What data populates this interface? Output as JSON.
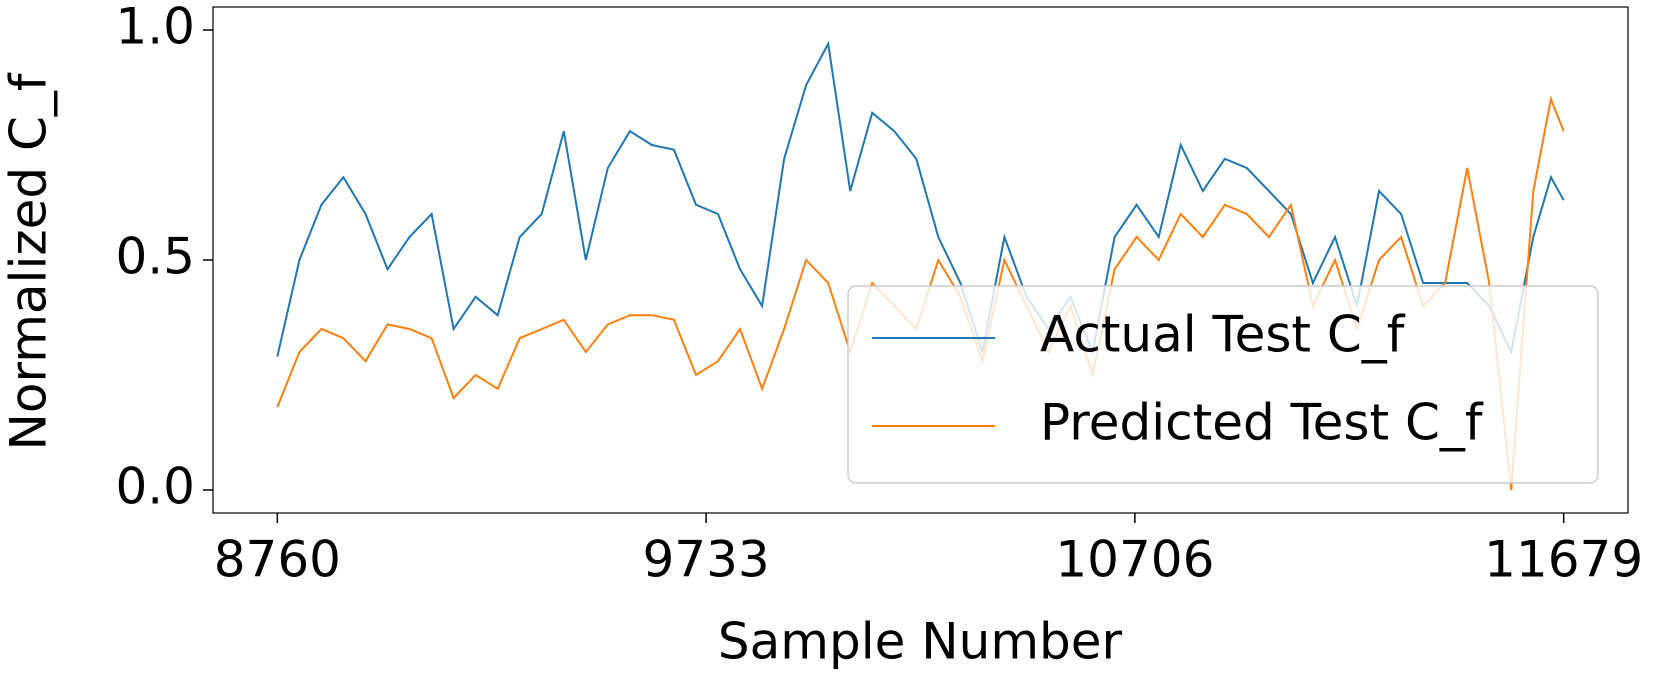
{
  "chart_data": {
    "type": "line",
    "xlabel": "Sample Number",
    "ylabel": "Normalized C_f",
    "x": [
      8760,
      8810,
      8860,
      8910,
      8960,
      9010,
      9060,
      9110,
      9160,
      9210,
      9260,
      9310,
      9360,
      9410,
      9460,
      9510,
      9560,
      9610,
      9660,
      9710,
      9760,
      9810,
      9860,
      9910,
      9960,
      10010,
      10060,
      10110,
      10160,
      10210,
      10260,
      10310,
      10360,
      10410,
      10460,
      10510,
      10560,
      10610,
      10660,
      10710,
      10760,
      10810,
      10860,
      10910,
      10960,
      11010,
      11060,
      11110,
      11160,
      11210,
      11260,
      11310,
      11360,
      11410,
      11460,
      11510,
      11560,
      11610,
      11650,
      11679
    ],
    "series": [
      {
        "name": "Actual Test C_f",
        "color": "#1f77b4",
        "values": [
          0.29,
          0.5,
          0.62,
          0.68,
          0.6,
          0.48,
          0.55,
          0.6,
          0.35,
          0.42,
          0.38,
          0.55,
          0.6,
          0.78,
          0.5,
          0.7,
          0.78,
          0.75,
          0.74,
          0.62,
          0.6,
          0.48,
          0.4,
          0.72,
          0.88,
          0.97,
          0.65,
          0.82,
          0.78,
          0.72,
          0.55,
          0.45,
          0.3,
          0.55,
          0.42,
          0.35,
          0.42,
          0.3,
          0.55,
          0.62,
          0.55,
          0.75,
          0.65,
          0.72,
          0.7,
          0.65,
          0.6,
          0.45,
          0.55,
          0.4,
          0.65,
          0.6,
          0.45,
          0.45,
          0.45,
          0.4,
          0.3,
          0.55,
          0.68,
          0.63
        ]
      },
      {
        "name": "Predicted Test C_f",
        "color": "#ff7f0e",
        "values": [
          0.18,
          0.3,
          0.35,
          0.33,
          0.28,
          0.36,
          0.35,
          0.33,
          0.2,
          0.25,
          0.22,
          0.33,
          0.35,
          0.37,
          0.3,
          0.36,
          0.38,
          0.38,
          0.37,
          0.25,
          0.28,
          0.35,
          0.22,
          0.35,
          0.5,
          0.45,
          0.3,
          0.45,
          0.4,
          0.35,
          0.5,
          0.42,
          0.28,
          0.5,
          0.4,
          0.3,
          0.4,
          0.25,
          0.48,
          0.55,
          0.5,
          0.6,
          0.55,
          0.62,
          0.6,
          0.55,
          0.62,
          0.4,
          0.5,
          0.35,
          0.5,
          0.55,
          0.4,
          0.45,
          0.7,
          0.45,
          0.0,
          0.65,
          0.85,
          0.78
        ]
      }
    ],
    "xlim": [
      8614,
      11825
    ],
    "ylim": [
      -0.05,
      1.05
    ],
    "xticks": [
      8760,
      9733,
      10706,
      11679
    ],
    "yticks": [
      {
        "value": 0,
        "label": "0.0"
      },
      0.5,
      {
        "value": 1,
        "label": "1.0"
      }
    ],
    "legend": "lower right",
    "grid": false
  }
}
